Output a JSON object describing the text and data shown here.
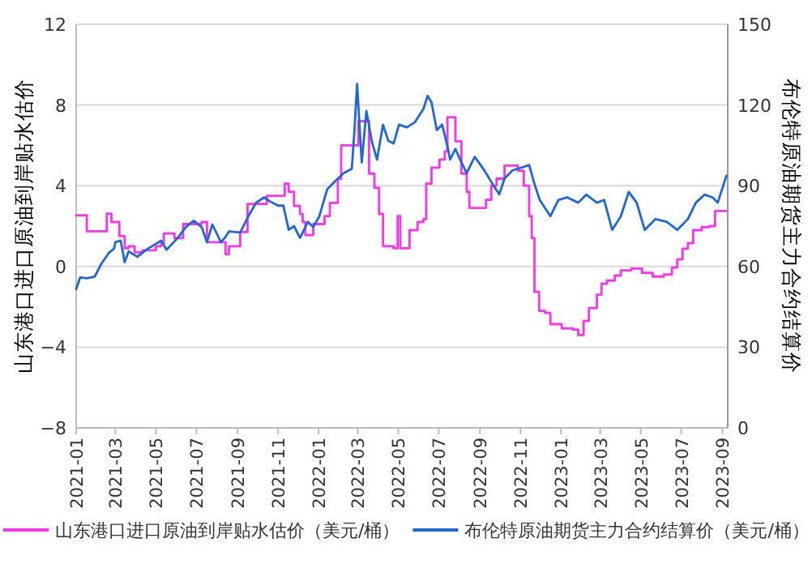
{
  "chart_data": {
    "type": "line",
    "ylabel": "山东港口进口原油到岸贴水估价",
    "y2label": "布伦特原油期货主力合约结算价",
    "xlim": [
      "2021-01-01",
      "2023-09-09"
    ],
    "xticks": [
      "2021-01",
      "2021-03",
      "2021-05",
      "2021-07",
      "2021-09",
      "2021-11",
      "2022-01",
      "2022-03",
      "2022-05",
      "2022-07",
      "2022-09",
      "2022-11",
      "2023-01",
      "2023-03",
      "2023-05",
      "2023-07",
      "2023-09"
    ],
    "ylim": [
      -8,
      12
    ],
    "yticks": [
      -8,
      -4,
      0,
      4,
      8,
      12
    ],
    "y2lim": [
      0,
      150
    ],
    "y2ticks": [
      0,
      30,
      60,
      90,
      120,
      150
    ],
    "grid": "y",
    "legend": "bottom",
    "marker": "none",
    "line_style": "solid",
    "series": [
      {
        "name": "山东港口进口原油到岸贴水估价（美元/桶）",
        "color": "#ff33ee",
        "type": "step",
        "x": [
          "2021-01-01",
          "2021-01-10",
          "2021-01-17",
          "2021-02-04",
          "2021-02-16",
          "2021-02-23",
          "2021-03-01",
          "2021-03-07",
          "2021-03-15",
          "2021-03-21",
          "2021-03-30",
          "2021-04-11",
          "2021-05-01",
          "2021-05-09",
          "2021-05-13",
          "2021-05-29",
          "2021-06-11",
          "2021-07-09",
          "2021-07-17",
          "2021-08-07",
          "2021-08-14",
          "2021-08-19",
          "2021-09-05",
          "2021-09-16",
          "2021-10-03",
          "2021-10-15",
          "2021-10-27",
          "2021-11-11",
          "2021-11-17",
          "2021-11-25",
          "2021-12-04",
          "2021-12-08",
          "2021-12-12",
          "2021-12-24",
          "2022-01-10",
          "2022-01-18",
          "2022-01-30",
          "2022-02-04",
          "2022-02-20",
          "2022-03-02",
          "2022-03-12",
          "2022-03-18",
          "2022-03-26",
          "2022-04-02",
          "2022-04-08",
          "2022-04-24",
          "2022-04-30",
          "2022-05-04",
          "2022-05-16",
          "2022-05-18",
          "2022-05-30",
          "2022-06-08",
          "2022-06-12",
          "2022-06-20",
          "2022-07-02",
          "2022-07-10",
          "2022-07-14",
          "2022-07-26",
          "2022-08-04",
          "2022-08-12",
          "2022-08-16",
          "2022-09-10",
          "2022-09-18",
          "2022-09-26",
          "2022-10-08",
          "2022-10-28",
          "2022-11-06",
          "2022-11-14",
          "2022-11-18",
          "2022-11-22",
          "2022-11-29",
          "2022-12-08",
          "2022-12-16",
          "2023-01-02",
          "2023-01-19",
          "2023-01-27",
          "2023-02-04",
          "2023-02-12",
          "2023-02-24",
          "2023-03-03",
          "2023-03-11",
          "2023-03-23",
          "2023-04-01",
          "2023-04-17",
          "2023-05-03",
          "2023-05-19",
          "2023-06-05",
          "2023-06-17",
          "2023-06-25",
          "2023-07-03",
          "2023-07-11",
          "2023-07-19",
          "2023-08-01",
          "2023-08-13",
          "2023-08-21",
          "2023-09-07"
        ],
        "values": [
          2.54,
          2.54,
          1.74,
          1.74,
          2.62,
          2.2,
          2.2,
          1.5,
          0.9,
          1.0,
          0.7,
          0.8,
          1.0,
          1.15,
          1.63,
          1.4,
          2.1,
          2.2,
          1.2,
          1.2,
          0.6,
          1.0,
          1.7,
          3.1,
          3.1,
          3.5,
          3.5,
          4.1,
          3.7,
          3.0,
          2.6,
          2.2,
          1.55,
          2.1,
          2.5,
          3.15,
          4.35,
          6.0,
          6.0,
          7.2,
          7.2,
          4.6,
          3.9,
          2.6,
          1.0,
          0.9,
          2.5,
          0.9,
          0.9,
          1.8,
          2.2,
          2.35,
          4.1,
          4.9,
          5.3,
          5.7,
          7.4,
          6.2,
          4.6,
          3.7,
          2.9,
          3.3,
          4.0,
          4.35,
          5.0,
          4.75,
          4.0,
          2.5,
          1.4,
          -1.26,
          -2.2,
          -2.3,
          -2.86,
          -3.07,
          -3.13,
          -3.4,
          -2.7,
          -2.06,
          -1.4,
          -0.86,
          -0.7,
          -0.45,
          -0.19,
          -0.1,
          -0.32,
          -0.5,
          -0.4,
          -0.05,
          0.35,
          0.88,
          1.15,
          1.8,
          1.95,
          2.0,
          2.75,
          2.75
        ]
      },
      {
        "name": "布伦特原油期货主力合约结算价（美元/桶）",
        "color": "#1f66d6",
        "axis": "y2",
        "x": [
          "2021-01-01",
          "2021-01-07",
          "2021-01-17",
          "2021-01-29",
          "2021-02-07",
          "2021-02-19",
          "2021-02-27",
          "2021-03-01",
          "2021-03-09",
          "2021-03-15",
          "2021-03-21",
          "2021-04-03",
          "2021-04-19",
          "2021-05-09",
          "2021-05-17",
          "2021-06-03",
          "2021-06-15",
          "2021-06-27",
          "2021-07-09",
          "2021-07-17",
          "2021-07-25",
          "2021-08-07",
          "2021-08-14",
          "2021-08-19",
          "2021-09-05",
          "2021-09-17",
          "2021-09-29",
          "2021-10-11",
          "2021-10-19",
          "2021-11-01",
          "2021-11-09",
          "2021-11-17",
          "2021-11-25",
          "2021-12-04",
          "2021-12-16",
          "2021-12-24",
          "2022-01-02",
          "2022-01-14",
          "2022-01-26",
          "2022-02-08",
          "2022-02-20",
          "2022-02-24",
          "2022-02-28",
          "2022-03-04",
          "2022-03-07",
          "2022-03-14",
          "2022-03-22",
          "2022-03-30",
          "2022-04-08",
          "2022-04-16",
          "2022-04-24",
          "2022-05-02",
          "2022-05-14",
          "2022-05-26",
          "2022-06-08",
          "2022-06-14",
          "2022-06-20",
          "2022-06-28",
          "2022-07-06",
          "2022-07-14",
          "2022-07-18",
          "2022-07-26",
          "2022-08-04",
          "2022-08-12",
          "2022-08-24",
          "2022-09-02",
          "2022-09-10",
          "2022-09-22",
          "2022-09-30",
          "2022-10-08",
          "2022-10-20",
          "2022-11-02",
          "2022-11-14",
          "2022-11-22",
          "2022-11-30",
          "2022-12-16",
          "2022-12-28",
          "2023-01-10",
          "2023-01-27",
          "2023-02-08",
          "2023-02-24",
          "2023-03-07",
          "2023-03-19",
          "2023-04-01",
          "2023-04-13",
          "2023-04-25",
          "2023-05-07",
          "2023-05-23",
          "2023-06-09",
          "2023-06-25",
          "2023-07-11",
          "2023-07-23",
          "2023-08-05",
          "2023-08-17",
          "2023-08-25",
          "2023-09-07"
        ],
        "values": [
          51.6,
          55.9,
          55.6,
          56.2,
          60.6,
          65,
          66.6,
          69,
          69.6,
          61.6,
          65.6,
          63.6,
          66.6,
          69.6,
          66.2,
          70.6,
          74.6,
          77,
          74.6,
          69,
          75.6,
          69,
          71,
          73,
          72.6,
          78.6,
          83.7,
          85.7,
          84.3,
          82.6,
          82.6,
          73.6,
          75,
          70.6,
          76.6,
          74.6,
          78.6,
          88.7,
          91.7,
          94.7,
          96.3,
          110.7,
          127.8,
          110.7,
          98.7,
          117.8,
          106.7,
          99.7,
          112.7,
          106.7,
          105.7,
          112.7,
          111.7,
          113.6,
          118.6,
          123.4,
          121,
          110.7,
          112.7,
          104.7,
          99.7,
          103.7,
          98.7,
          94.7,
          100.7,
          97.7,
          94.7,
          89.8,
          86.8,
          92.7,
          95.7,
          96.7,
          97.7,
          90.7,
          84.7,
          78.7,
          84.7,
          85.7,
          83.7,
          86.7,
          83.7,
          84.7,
          73.6,
          78.6,
          87.7,
          83.7,
          73.6,
          77.6,
          76.6,
          73.6,
          77.6,
          83.7,
          86.7,
          85.7,
          83.7,
          93.7
        ]
      }
    ]
  }
}
